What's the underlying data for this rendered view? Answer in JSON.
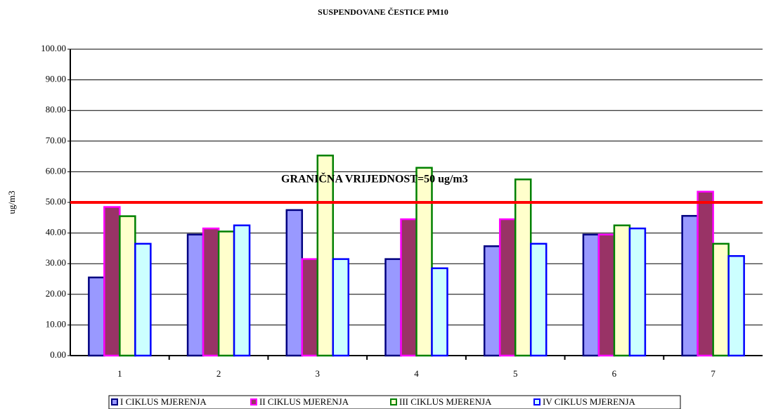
{
  "chart_data": {
    "type": "bar",
    "title": "SUSPENDOVANE ČESTICE PM10",
    "y_label": "ug/m3",
    "categories": [
      "1",
      "2",
      "3",
      "4",
      "5",
      "6",
      "7"
    ],
    "series": [
      {
        "name": "I CIKLUS MJERENJA",
        "color": "#9999ff",
        "edgecolor": "#000080",
        "values": [
          25.5,
          39.5,
          47.5,
          31.5,
          35.7,
          39.5,
          45.6
        ]
      },
      {
        "name": "II CIKLUS MJERENJA",
        "color": "#993366",
        "edgecolor": "#ff00ff",
        "values": [
          48.5,
          41.5,
          31.5,
          44.5,
          44.5,
          39.5,
          53.5
        ]
      },
      {
        "name": "III CIKLUS MJERENJA",
        "color": "#ffffcc",
        "edgecolor": "#008000",
        "values": [
          45.5,
          40.5,
          65.3,
          61.3,
          57.5,
          42.5,
          36.5
        ]
      },
      {
        "name": "IV CIKLUS MJERENJA",
        "color": "#ccffff",
        "edgecolor": "#0000ff",
        "values": [
          36.5,
          42.5,
          31.5,
          28.5,
          36.5,
          41.5,
          32.5
        ]
      }
    ],
    "ylim": [
      0,
      100
    ],
    "yticks": [
      {
        "value": 0,
        "label": "0.00"
      },
      {
        "value": 10,
        "label": "10.00"
      },
      {
        "value": 20,
        "label": "20.00"
      },
      {
        "value": 30,
        "label": "30.00"
      },
      {
        "value": 40,
        "label": "40.00"
      },
      {
        "value": 50,
        "label": "50.00"
      },
      {
        "value": 60,
        "label": "60.00"
      },
      {
        "value": 70,
        "label": "70.00"
      },
      {
        "value": 80,
        "label": "80.00"
      },
      {
        "value": 90,
        "label": "90.00"
      },
      {
        "value": 100,
        "label": "100.00"
      }
    ],
    "grid": true,
    "limit": {
      "value": 50,
      "label": "GRANIČNA VRIJEDNOST=50 ug/m3",
      "color": "#ff0000"
    },
    "legend": "bottom"
  }
}
